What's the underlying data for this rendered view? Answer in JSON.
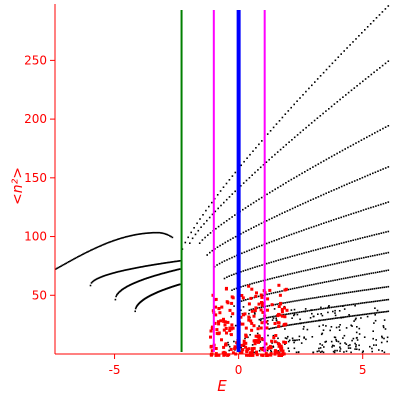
{
  "chart_data": {
    "type": "scatter",
    "title": "",
    "xlabel": "E",
    "ylabel": "<n²>",
    "xlim": [
      -7.4,
      6.1
    ],
    "ylim": [
      0,
      298
    ],
    "xticks": [
      -5,
      0,
      5
    ],
    "xtick_labels": [
      "-5",
      "0",
      "5"
    ],
    "yticks": [
      50,
      100,
      150,
      200,
      250
    ],
    "ytick_labels": [
      "50",
      "100",
      "150",
      "200",
      "250"
    ],
    "grid": false,
    "legend": "none",
    "colors": {
      "axis": "#ff0000",
      "points": "#000000",
      "highlight_points": "#ff0000",
      "line_green": "#008000",
      "line_magenta": "#ff00ff",
      "line_blue": "#0000ff"
    },
    "vertical_lines": [
      {
        "x": -2.3,
        "color": "#008000"
      },
      {
        "x": -1.0,
        "color": "#ff00ff"
      },
      {
        "x": 0.0,
        "color": "#0000ff"
      },
      {
        "x": 1.05,
        "color": "#ff00ff"
      }
    ],
    "left_branches": [
      {
        "x_start": -7.4,
        "x_end": -2.7,
        "y_start": 73,
        "y_peak": 104,
        "x_peak": -3.3,
        "y_end": 100
      },
      {
        "x_start": -6.0,
        "x_end": -2.4,
        "y_start": 59,
        "y_end": 80
      },
      {
        "x_start": -5.0,
        "x_end": -2.4,
        "y_start": 47,
        "y_end": 73
      },
      {
        "x_start": -4.2,
        "x_end": -2.4,
        "y_start": 37,
        "y_end": 60
      }
    ],
    "right_branches": [
      {
        "x_start": -2.3,
        "y_start": 90,
        "x_end": 6.0,
        "y_end": 297
      },
      {
        "x_start": -2.0,
        "y_start": 95,
        "x_end": 6.0,
        "y_end": 250
      },
      {
        "x_start": -1.6,
        "y_start": 95,
        "x_end": 6.0,
        "y_end": 195
      },
      {
        "x_start": -1.3,
        "y_start": 85,
        "x_end": 6.0,
        "y_end": 160
      },
      {
        "x_start": -1.0,
        "y_start": 75,
        "x_end": 6.0,
        "y_end": 130
      },
      {
        "x_start": -0.6,
        "y_start": 65,
        "x_end": 6.0,
        "y_end": 105
      },
      {
        "x_start": -0.3,
        "y_start": 55,
        "x_end": 6.0,
        "y_end": 87
      },
      {
        "x_start": 0.0,
        "y_start": 45,
        "x_end": 6.0,
        "y_end": 72
      },
      {
        "x_start": 0.4,
        "y_start": 38,
        "x_end": 6.0,
        "y_end": 58
      },
      {
        "x_start": 0.8,
        "y_start": 30,
        "x_end": 6.0,
        "y_end": 47
      },
      {
        "x_start": 1.2,
        "y_start": 22,
        "x_end": 6.0,
        "y_end": 37
      }
    ],
    "highlight_region": {
      "x_range": [
        -1.2,
        1.9
      ],
      "y_range": [
        0,
        60
      ]
    }
  }
}
